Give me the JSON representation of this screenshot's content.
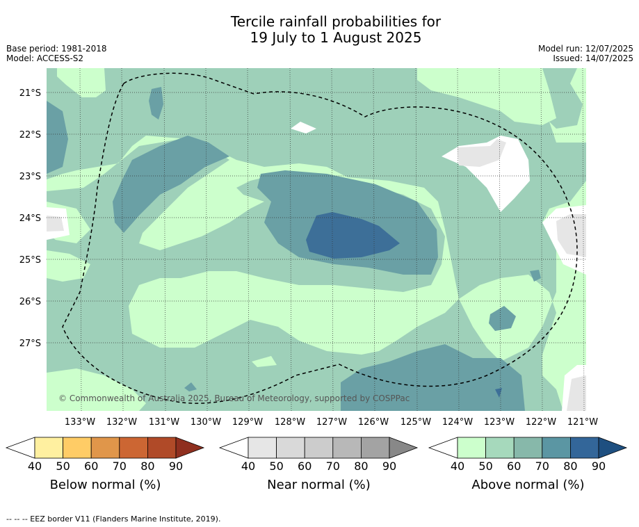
{
  "title_line1": "Tercile rainfall probabilities for",
  "title_line2": "19 July to 1 August 2025",
  "base_period": "Base period: 1981-2018",
  "model": "Model: ACCESS-S2",
  "model_run": "Model run: 12/07/2025",
  "issued": "Issued: 14/07/2025",
  "copyright": "© Commonwealth of Australia 2025, Bureau of Meteorology, supported by COSPPac",
  "footnote": "--  --  -- EEZ border V11 (Flanders Marine Institute, 2019).",
  "map": {
    "lon_labels": [
      "133°W",
      "132°W",
      "131°W",
      "130°W",
      "129°W",
      "128°W",
      "127°W",
      "126°W",
      "125°W",
      "124°W",
      "123°W",
      "122°W",
      "121°W"
    ],
    "lat_labels": [
      "21°S",
      "22°S",
      "23°S",
      "24°S",
      "25°S",
      "26°S",
      "27°S"
    ],
    "colors": {
      "above_40": "#ccffcc",
      "above_50": "#9ed0b9",
      "above_60": "#85b5ac",
      "above_70": "#6aa0a5",
      "above_80": "#3d6f98",
      "near_40": "#e6e6e6",
      "white": "#ffffff"
    }
  },
  "colorbars": [
    {
      "label": "Below normal (%)",
      "ticks": [
        "40",
        "50",
        "60",
        "70",
        "80",
        "90"
      ],
      "colors": [
        "#fff0a0",
        "#ffcc66",
        "#e0964a",
        "#cc6633",
        "#b04a28",
        "#8f2f1f"
      ]
    },
    {
      "label": "Near normal (%)",
      "ticks": [
        "40",
        "50",
        "60",
        "70",
        "80",
        "90"
      ],
      "colors": [
        "#e6e6e6",
        "#d9d9d9",
        "#cccccc",
        "#b8b8b8",
        "#a3a3a3",
        "#888888"
      ]
    },
    {
      "label": "Above normal (%)",
      "ticks": [
        "40",
        "50",
        "60",
        "70",
        "80",
        "90"
      ],
      "colors": [
        "#ccffcc",
        "#a6d9bc",
        "#87b8aa",
        "#5b96a3",
        "#336699",
        "#1e4f80"
      ]
    }
  ]
}
